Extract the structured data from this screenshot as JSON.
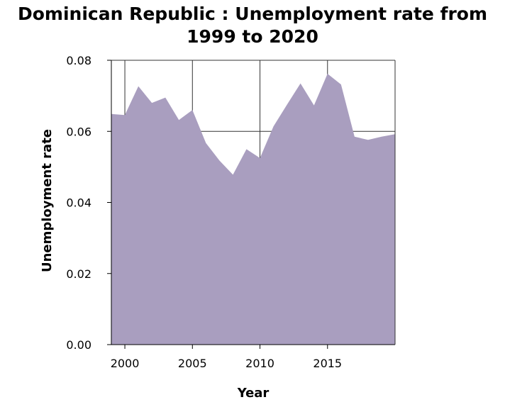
{
  "chart_data": {
    "type": "area",
    "title_line1": "Dominican Republic : Unemployment rate from",
    "title_line2": "1999 to 2020",
    "xlabel": "Year",
    "ylabel": "Unemployment rate",
    "xlim": [
      1999,
      2020
    ],
    "ylim": [
      0,
      0.08
    ],
    "x_ticks": [
      2000,
      2005,
      2010,
      2015
    ],
    "y_ticks": [
      "0.00",
      "0.02",
      "0.04",
      "0.06",
      "0.08"
    ],
    "grid": true,
    "fill_color": "#a99ebf",
    "series": [
      {
        "name": "Unemployment rate",
        "x": [
          1999,
          2000,
          2001,
          2002,
          2003,
          2004,
          2005,
          2006,
          2007,
          2008,
          2009,
          2010,
          2011,
          2012,
          2013,
          2014,
          2015,
          2016,
          2017,
          2018,
          2019,
          2020
        ],
        "values": [
          0.0649,
          0.0646,
          0.0727,
          0.068,
          0.0695,
          0.0632,
          0.066,
          0.0567,
          0.0518,
          0.0478,
          0.055,
          0.0525,
          0.0614,
          0.0675,
          0.0735,
          0.0673,
          0.0762,
          0.0732,
          0.0585,
          0.0576,
          0.0585,
          0.0592
        ]
      }
    ]
  }
}
